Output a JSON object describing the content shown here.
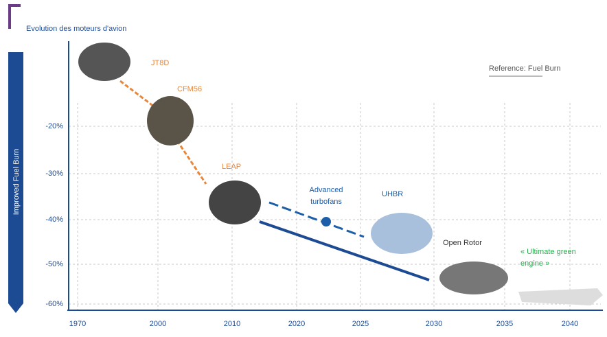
{
  "header": {
    "title": "Evolution des moteurs d'avion"
  },
  "y_axis": {
    "label": "Improved Fuel Burn",
    "ticks": [
      "-20%",
      "-30%",
      "-40%",
      "-50%",
      "-60%"
    ]
  },
  "x_axis": {
    "ticks": [
      "1970",
      "2000",
      "2010",
      "2020",
      "2025",
      "2030",
      "2035",
      "2040"
    ]
  },
  "engines": [
    {
      "label": "JT8D"
    },
    {
      "label": "CFM56"
    },
    {
      "label": "LEAP"
    },
    {
      "label": "UHBR"
    },
    {
      "label": "Open Rotor"
    }
  ],
  "annotations": {
    "advanced": [
      "Advanced",
      "turbofans"
    ],
    "ultimate": [
      "« Ultimate green",
      "engine »"
    ],
    "reference": "Reference: Fuel Burn"
  }
}
